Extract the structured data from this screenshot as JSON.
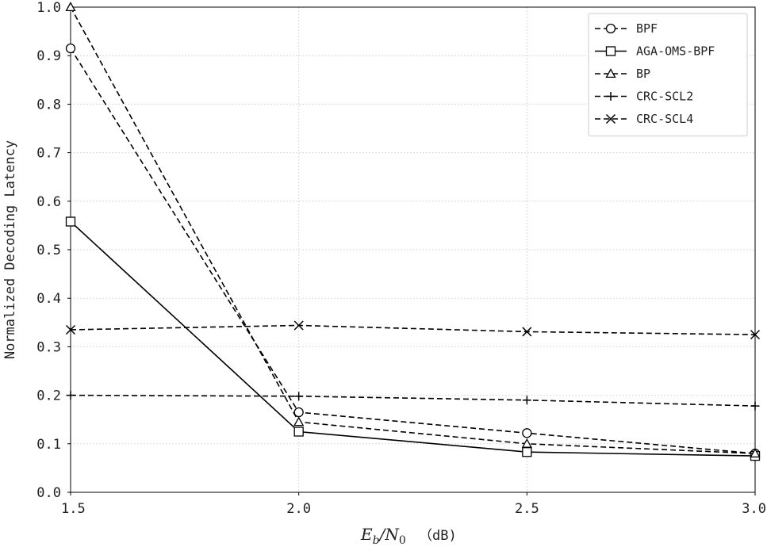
{
  "chart_data": {
    "type": "line",
    "x": [
      1.5,
      2.0,
      2.5,
      3.0
    ],
    "xticks": [
      "1.5",
      "2.0",
      "2.5",
      "3.0"
    ],
    "yticks": [
      "0.0",
      "0.1",
      "0.2",
      "0.3",
      "0.4",
      "0.5",
      "0.6",
      "0.7",
      "0.8",
      "0.9",
      "1.0"
    ],
    "xlim": [
      1.5,
      3.0
    ],
    "ylim": [
      0.0,
      1.0
    ],
    "ylabel": "Normalized Decoding Latency",
    "xlabel": {
      "math": "E_b/N_0",
      "unit": "（dB)"
    },
    "grid": true,
    "legend_position": "top-right",
    "series": [
      {
        "name": "BPF",
        "marker": "circle",
        "dash": "dashed",
        "values": [
          0.915,
          0.165,
          0.122,
          0.08
        ]
      },
      {
        "name": "AGA-OMS-BPF",
        "marker": "square",
        "dash": "solid",
        "values": [
          0.558,
          0.125,
          0.083,
          0.075
        ]
      },
      {
        "name": "BP",
        "marker": "triangle",
        "dash": "dashed",
        "values": [
          1.0,
          0.145,
          0.1,
          0.08
        ]
      },
      {
        "name": "CRC-SCL2",
        "marker": "plus",
        "dash": "dashed",
        "values": [
          0.2,
          0.198,
          0.19,
          0.178
        ]
      },
      {
        "name": "CRC-SCL4",
        "marker": "x",
        "dash": "dashed",
        "values": [
          0.335,
          0.344,
          0.331,
          0.325
        ]
      }
    ]
  }
}
